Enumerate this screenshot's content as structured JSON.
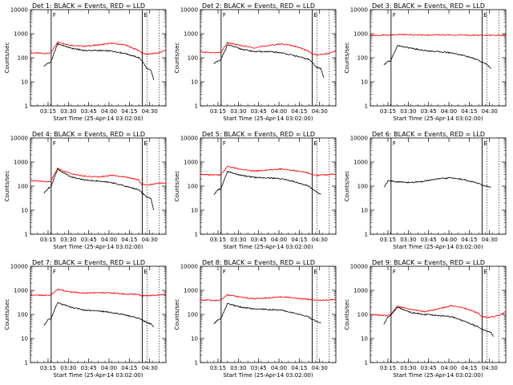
{
  "figure": {
    "x_tick_labels": [
      "03:15",
      "03:30",
      "03:45",
      "04:00",
      "04:15",
      "04:30"
    ],
    "x_label": "Start Time (25-Apr-14 03:02:00)",
    "y_label": "Counts/sec",
    "y_tick_labels": [
      "1",
      "10",
      "100",
      "1000",
      "10000"
    ]
  },
  "colors": {
    "events": "#000000",
    "lld": "#ff0000"
  },
  "chart_data": [
    {
      "type": "line",
      "title": "Det 1: BLACK = Events, RED = LLD",
      "x_range_minutes": [
        0,
        100
      ],
      "ylim": [
        1,
        10000
      ],
      "y_scale": "log",
      "markers_minutes": [
        {
          "t": 15.3,
          "style": "solid",
          "label": "F"
        },
        {
          "t": 82.5,
          "style": "solid",
          "label": "E"
        },
        {
          "t": 86,
          "style": "dotted"
        },
        {
          "t": 95,
          "style": "dotted"
        }
      ],
      "series": [
        {
          "color": "red",
          "x": [
            0,
            13,
            15,
            20,
            30,
            40,
            50,
            60,
            70,
            80,
            82,
            86,
            90,
            95,
            100
          ],
          "y": [
            160,
            150,
            155,
            450,
            330,
            300,
            340,
            400,
            340,
            200,
            160,
            140,
            150,
            160,
            210
          ]
        },
        {
          "color": "black",
          "x": [
            10,
            13,
            15,
            20,
            30,
            40,
            50,
            60,
            70,
            80,
            82,
            86,
            89,
            91
          ],
          "y": [
            45,
            60,
            65,
            380,
            250,
            200,
            200,
            190,
            150,
            100,
            80,
            35,
            30,
            12
          ]
        }
      ]
    },
    {
      "type": "line",
      "title": "Det 2: BLACK = Events, RED = LLD",
      "x_range_minutes": [
        0,
        100
      ],
      "ylim": [
        1,
        10000
      ],
      "y_scale": "log",
      "markers_minutes": [
        {
          "t": 15.3,
          "style": "solid",
          "label": "F"
        },
        {
          "t": 82.5,
          "style": "solid",
          "label": "E"
        },
        {
          "t": 86,
          "style": "dotted"
        },
        {
          "t": 95,
          "style": "dotted"
        }
      ],
      "series": [
        {
          "color": "red",
          "x": [
            0,
            13,
            15,
            20,
            30,
            40,
            50,
            60,
            70,
            80,
            82,
            86,
            90,
            95,
            100
          ],
          "y": [
            170,
            160,
            165,
            420,
            320,
            260,
            320,
            380,
            300,
            190,
            150,
            130,
            140,
            150,
            190
          ]
        },
        {
          "color": "black",
          "x": [
            10,
            13,
            15,
            20,
            30,
            40,
            50,
            60,
            70,
            80,
            82,
            86,
            89,
            91
          ],
          "y": [
            60,
            70,
            80,
            350,
            230,
            180,
            180,
            160,
            120,
            85,
            70,
            40,
            35,
            15
          ]
        }
      ]
    },
    {
      "type": "line",
      "title": "Det 3: BLACK = Events, RED = LLD",
      "x_range_minutes": [
        0,
        100
      ],
      "ylim": [
        1,
        10000
      ],
      "y_scale": "log",
      "markers_minutes": [
        {
          "t": 15.3,
          "style": "solid",
          "label": "F"
        },
        {
          "t": 82.5,
          "style": "solid",
          "label": "E"
        },
        {
          "t": 86,
          "style": "dotted"
        },
        {
          "t": 95,
          "style": "dotted"
        }
      ],
      "series": [
        {
          "color": "red",
          "x": [
            0,
            15,
            20,
            30,
            40,
            50,
            60,
            70,
            80,
            90,
            100
          ],
          "y": [
            850,
            880,
            930,
            900,
            880,
            900,
            880,
            870,
            860,
            860,
            850
          ]
        },
        {
          "color": "black",
          "x": [
            10,
            13,
            15,
            20,
            30,
            40,
            50,
            60,
            70,
            80,
            82,
            86,
            89
          ],
          "y": [
            50,
            70,
            75,
            320,
            250,
            200,
            180,
            160,
            120,
            80,
            65,
            55,
            35
          ]
        }
      ]
    },
    {
      "type": "line",
      "title": "Det 4: BLACK = Events, RED = LLD",
      "x_range_minutes": [
        0,
        100
      ],
      "ylim": [
        1,
        10000
      ],
      "y_scale": "log",
      "markers_minutes": [
        {
          "t": 15.3,
          "style": "solid",
          "label": "F"
        },
        {
          "t": 82.5,
          "style": "solid",
          "label": "E"
        },
        {
          "t": 86,
          "style": "dotted"
        },
        {
          "t": 95,
          "style": "dotted"
        }
      ],
      "series": [
        {
          "color": "red",
          "x": [
            0,
            13,
            15,
            20,
            30,
            40,
            50,
            60,
            70,
            80,
            82,
            86,
            90,
            95,
            100
          ],
          "y": [
            170,
            150,
            160,
            550,
            330,
            260,
            240,
            280,
            240,
            180,
            120,
            110,
            120,
            130,
            140
          ]
        },
        {
          "color": "black",
          "x": [
            10,
            13,
            15,
            20,
            30,
            40,
            50,
            60,
            70,
            80,
            82,
            86,
            89,
            91
          ],
          "y": [
            50,
            80,
            90,
            500,
            240,
            180,
            160,
            140,
            100,
            70,
            55,
            35,
            30,
            10
          ]
        }
      ]
    },
    {
      "type": "line",
      "title": "Det 5: BLACK = Events, RED = LLD",
      "x_range_minutes": [
        0,
        100
      ],
      "ylim": [
        1,
        10000
      ],
      "y_scale": "log",
      "markers_minutes": [
        {
          "t": 15.3,
          "style": "solid",
          "label": "F"
        },
        {
          "t": 82.5,
          "style": "solid",
          "label": "E"
        },
        {
          "t": 86,
          "style": "dotted"
        },
        {
          "t": 95,
          "style": "dotted"
        }
      ],
      "series": [
        {
          "color": "red",
          "x": [
            0,
            13,
            15,
            20,
            30,
            40,
            50,
            60,
            70,
            80,
            82,
            86,
            90,
            95,
            100
          ],
          "y": [
            300,
            290,
            300,
            650,
            500,
            420,
            460,
            520,
            440,
            350,
            300,
            280,
            290,
            300,
            320
          ]
        },
        {
          "color": "black",
          "x": [
            10,
            13,
            15,
            20,
            30,
            40,
            50,
            60,
            70,
            80,
            82,
            86,
            89
          ],
          "y": [
            45,
            70,
            75,
            400,
            280,
            230,
            220,
            200,
            150,
            100,
            80,
            55,
            45
          ]
        }
      ]
    },
    {
      "type": "line",
      "title": "Det 6: BLACK = Events, RED = LLD",
      "x_range_minutes": [
        0,
        100
      ],
      "ylim": [
        1,
        10000
      ],
      "y_scale": "log",
      "markers_minutes": [
        {
          "t": 15.3,
          "style": "solid",
          "label": "F"
        },
        {
          "t": 82.5,
          "style": "solid",
          "label": "E"
        },
        {
          "t": 86,
          "style": "dotted"
        },
        {
          "t": 95,
          "style": "dotted"
        }
      ],
      "series": [
        {
          "color": "black",
          "x": [
            10,
            13,
            15,
            20,
            30,
            40,
            50,
            60,
            70,
            80,
            82,
            86,
            89
          ],
          "y": [
            90,
            160,
            165,
            150,
            140,
            160,
            200,
            220,
            180,
            130,
            110,
            100,
            90
          ]
        }
      ]
    },
    {
      "type": "line",
      "title": "Det 7: BLACK = Events, RED = LLD",
      "x_range_minutes": [
        0,
        100
      ],
      "ylim": [
        1,
        10000
      ],
      "y_scale": "log",
      "markers_minutes": [
        {
          "t": 15.3,
          "style": "solid",
          "label": "F"
        },
        {
          "t": 82.5,
          "style": "solid",
          "label": "E"
        },
        {
          "t": 86,
          "style": "dotted"
        },
        {
          "t": 95,
          "style": "dotted"
        }
      ],
      "series": [
        {
          "color": "red",
          "x": [
            0,
            13,
            15,
            20,
            30,
            40,
            50,
            60,
            70,
            80,
            82,
            86,
            90,
            95,
            100
          ],
          "y": [
            650,
            620,
            640,
            1100,
            850,
            780,
            800,
            780,
            700,
            680,
            600,
            600,
            620,
            640,
            700
          ]
        },
        {
          "color": "black",
          "x": [
            10,
            13,
            15,
            20,
            30,
            40,
            50,
            60,
            70,
            80,
            82,
            86,
            89,
            91
          ],
          "y": [
            35,
            60,
            65,
            300,
            200,
            150,
            140,
            120,
            95,
            70,
            60,
            45,
            40,
            30
          ]
        }
      ]
    },
    {
      "type": "line",
      "title": "Det 8: BLACK = Events, RED = LLD",
      "x_range_minutes": [
        0,
        100
      ],
      "ylim": [
        1,
        10000
      ],
      "y_scale": "log",
      "markers_minutes": [
        {
          "t": 15.3,
          "style": "solid",
          "label": "F"
        },
        {
          "t": 82.5,
          "style": "solid",
          "label": "E"
        },
        {
          "t": 86,
          "style": "dotted"
        },
        {
          "t": 95,
          "style": "dotted"
        }
      ],
      "series": [
        {
          "color": "red",
          "x": [
            0,
            13,
            15,
            20,
            30,
            40,
            50,
            60,
            70,
            80,
            82,
            86,
            90,
            95,
            100
          ],
          "y": [
            400,
            380,
            400,
            650,
            520,
            450,
            480,
            540,
            480,
            420,
            400,
            390,
            400,
            400,
            420
          ]
        },
        {
          "color": "black",
          "x": [
            10,
            13,
            15,
            20,
            30,
            40,
            50,
            60,
            70,
            80,
            82,
            86,
            89
          ],
          "y": [
            40,
            60,
            65,
            280,
            200,
            170,
            160,
            150,
            110,
            80,
            65,
            50,
            45
          ]
        }
      ]
    },
    {
      "type": "line",
      "title": "Det 9: BLACK = Events, RED = LLD",
      "x_range_minutes": [
        0,
        100
      ],
      "ylim": [
        1,
        10000
      ],
      "y_scale": "log",
      "markers_minutes": [
        {
          "t": 15.3,
          "style": "solid",
          "label": "F"
        },
        {
          "t": 82.5,
          "style": "solid",
          "label": "E"
        },
        {
          "t": 86,
          "style": "dotted"
        },
        {
          "t": 95,
          "style": "dotted"
        }
      ],
      "series": [
        {
          "color": "red",
          "x": [
            0,
            13,
            15,
            20,
            30,
            40,
            50,
            60,
            70,
            80,
            82,
            86,
            90,
            95,
            100
          ],
          "y": [
            100,
            90,
            100,
            220,
            160,
            130,
            170,
            230,
            180,
            110,
            85,
            75,
            80,
            90,
            130
          ]
        },
        {
          "color": "black",
          "x": [
            10,
            13,
            15,
            20,
            30,
            40,
            50,
            60,
            70,
            80,
            82,
            86,
            89,
            91
          ],
          "y": [
            40,
            80,
            90,
            200,
            120,
            100,
            90,
            80,
            50,
            30,
            25,
            20,
            18,
            12
          ]
        }
      ]
    }
  ]
}
